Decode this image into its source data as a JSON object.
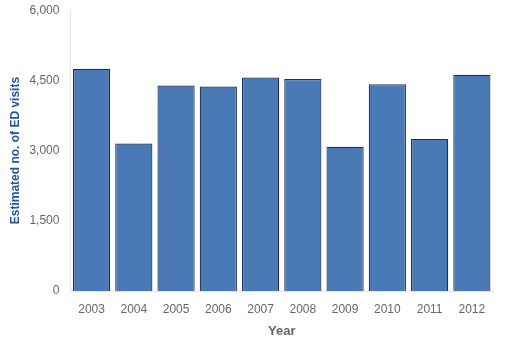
{
  "chart_data": {
    "type": "bar",
    "categories": [
      "2003",
      "2004",
      "2005",
      "2006",
      "2007",
      "2008",
      "2009",
      "2010",
      "2011",
      "2012"
    ],
    "values": [
      4750,
      3151,
      4390,
      4370,
      4560,
      4530,
      3080,
      4420,
      3250,
      4620
    ],
    "color": "#4a7ab5",
    "xlabel": "Year",
    "ylabel": "Estimated no. of ED visits",
    "ylim": [
      0,
      6000
    ],
    "yticks": [
      0,
      {
        "value": 1500,
        "label": "1,500"
      },
      {
        "value": 3000,
        "label": "3,000"
      },
      {
        "value": 4500,
        "label": "4,500"
      },
      {
        "value": 6000,
        "label": "6,000"
      }
    ],
    "grid": false
  }
}
